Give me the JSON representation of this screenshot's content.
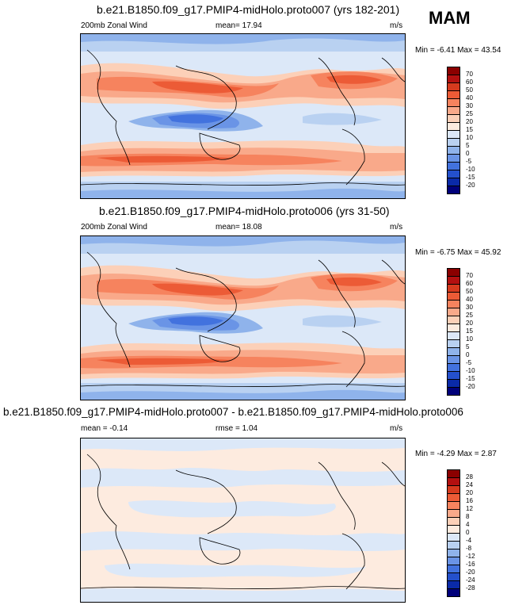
{
  "season": "MAM",
  "panels": [
    {
      "title": "b.e21.B1850.f09_g17.PMIP4-midHolo.proto007 (yrs 182-201)",
      "left_label": "200mb Zonal Wind",
      "center_label": "mean=  17.94",
      "units": "m/s",
      "minmax": "Min =  -6.41 Max =  43.54",
      "colorbar_labels": [
        "70",
        "60",
        "50",
        "40",
        "30",
        "25",
        "20",
        "15",
        "10",
        "5",
        "0",
        "-5",
        "-10",
        "-15",
        "-20"
      ]
    },
    {
      "title": "b.e21.B1850.f09_g17.PMIP4-midHolo.proto006 (yrs 31-50)",
      "left_label": "200mb Zonal Wind",
      "center_label": "mean=  18.08",
      "units": "m/s",
      "minmax": "Min =  -6.75 Max =  45.92",
      "colorbar_labels": [
        "70",
        "60",
        "50",
        "40",
        "30",
        "25",
        "20",
        "15",
        "10",
        "5",
        "0",
        "-5",
        "-10",
        "-15",
        "-20"
      ]
    },
    {
      "title": "b.e21.B1850.f09_g17.PMIP4-midHolo.proto007 - b.e21.B1850.f09_g17.PMIP4-midHolo.proto006",
      "left_label": "mean =  -0.14",
      "center_label": "rmse =  1.04",
      "units": "m/s",
      "minmax": "Min =  -4.29 Max =  2.87",
      "colorbar_labels": [
        "28",
        "24",
        "20",
        "16",
        "12",
        "8",
        "4",
        "0",
        "-4",
        "-8",
        "-12",
        "-16",
        "-20",
        "-24",
        "-28"
      ]
    }
  ],
  "colors": {
    "wind_scale": [
      "#8b0000",
      "#b31010",
      "#d63a1e",
      "#ec5b36",
      "#f6835e",
      "#f9a98a",
      "#fcd0b8",
      "#fdebdf",
      "#dce8f8",
      "#b9d1f1",
      "#8fb3eb",
      "#6a94e6",
      "#4272de",
      "#2450cc",
      "#0a2aa8",
      "#00007a"
    ],
    "diff_scale": [
      "#8b0000",
      "#b31010",
      "#d63a1e",
      "#ec5b36",
      "#f6835e",
      "#f9a98a",
      "#fcd0b8",
      "#fdebdf",
      "#dce8f8",
      "#b9d1f1",
      "#8fb3eb",
      "#6a94e6",
      "#4272de",
      "#2450cc",
      "#0a2aa8",
      "#00007a"
    ]
  }
}
